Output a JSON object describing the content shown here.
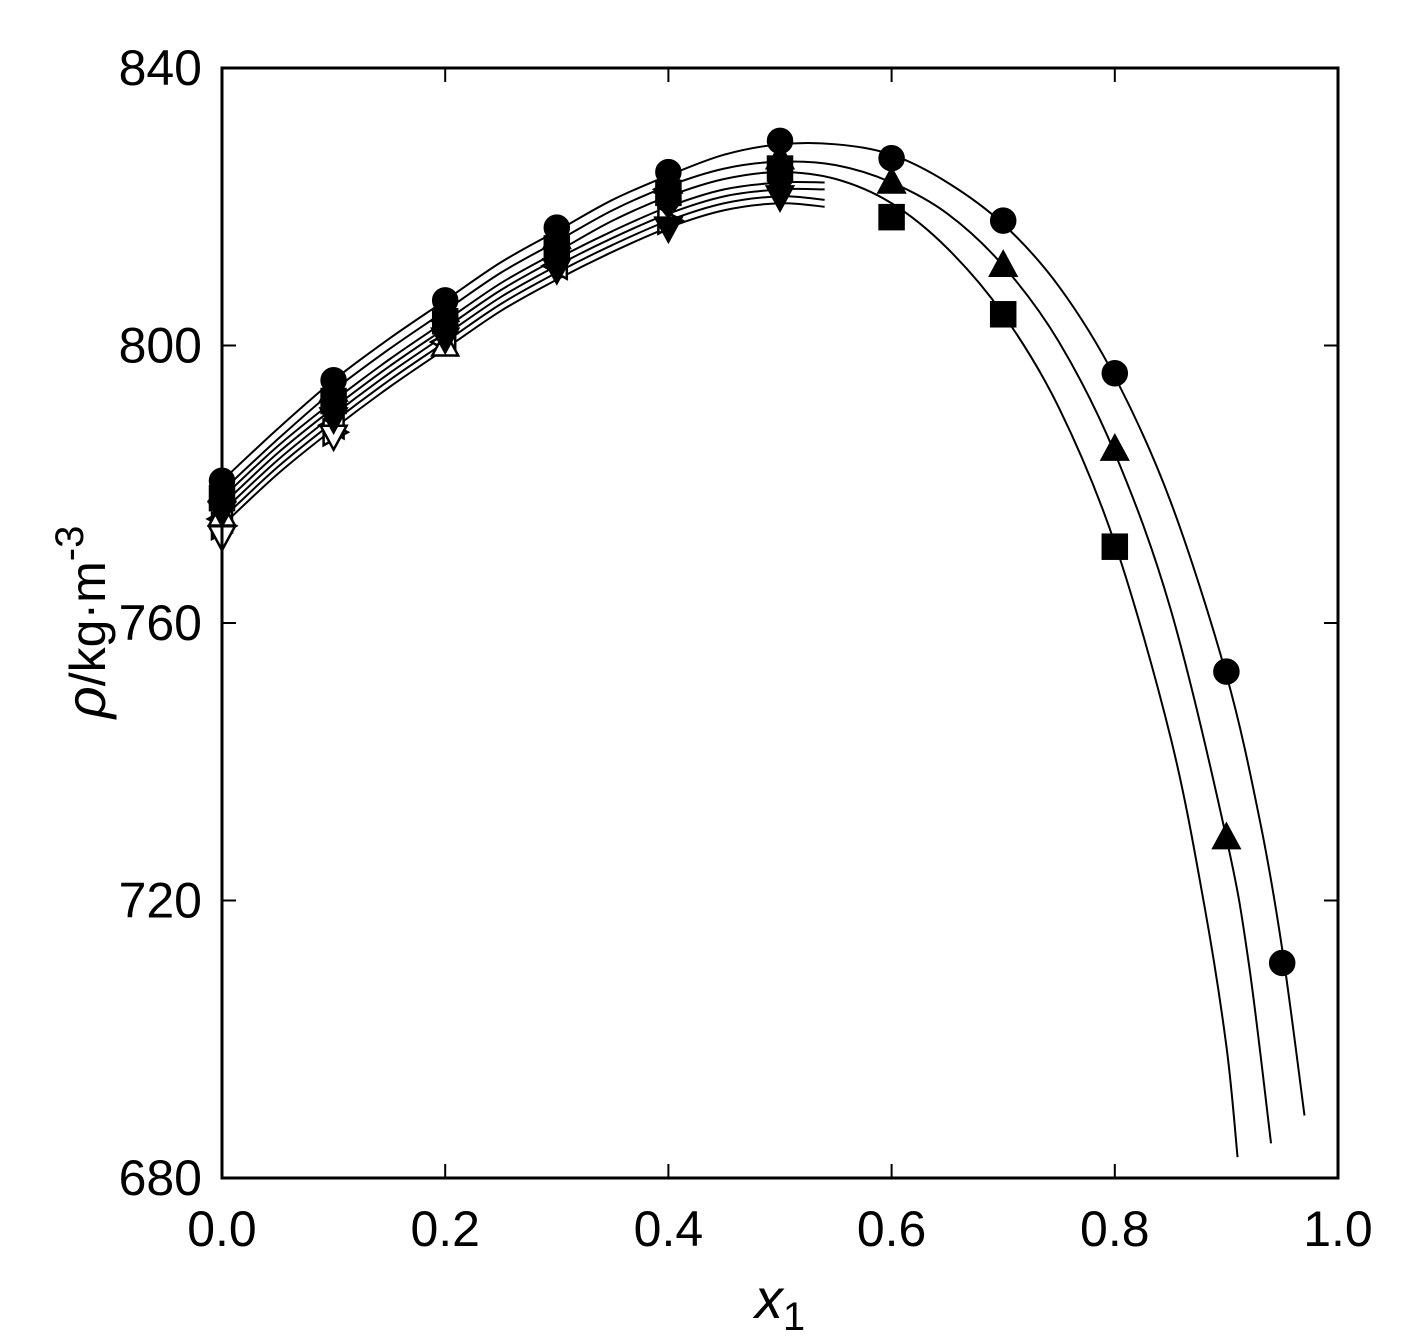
{
  "chart_data": {
    "type": "scatter",
    "xlabel": {
      "symbol": "x",
      "subscript": "1"
    },
    "ylabel": {
      "symbol": "ρ",
      "unit": "/kg·m",
      "superscript": "-3"
    },
    "xlim": [
      0.0,
      1.0
    ],
    "ylim": [
      680,
      840
    ],
    "xticks": [
      0.0,
      0.2,
      0.4,
      0.6,
      0.8,
      1.0
    ],
    "xtick_labels": [
      "0.0",
      "0.2",
      "0.4",
      "0.6",
      "0.8",
      "1.0"
    ],
    "yticks": [
      680,
      720,
      760,
      800,
      840
    ],
    "ytick_labels": [
      "680",
      "720",
      "760",
      "800",
      "840"
    ],
    "grid": false,
    "legend": "none",
    "series": [
      {
        "marker": "circle",
        "filled": true,
        "x": [
          0.0,
          0.1,
          0.2,
          0.3,
          0.4,
          0.5,
          0.6,
          0.7,
          0.8,
          0.9,
          0.95
        ],
        "y": [
          780.5,
          795.0,
          806.5,
          817.0,
          825.0,
          829.5,
          827.0,
          818.0,
          796.0,
          753.0,
          711.0
        ]
      },
      {
        "marker": "triangle-up",
        "filled": true,
        "x": [
          0.0,
          0.1,
          0.2,
          0.3,
          0.4,
          0.5,
          0.6,
          0.7,
          0.8,
          0.9
        ],
        "y": [
          779.0,
          793.5,
          805.0,
          815.5,
          823.5,
          827.0,
          823.5,
          811.5,
          785.0,
          729.0
        ]
      },
      {
        "marker": "square",
        "filled": true,
        "x": [
          0.0,
          0.1,
          0.2,
          0.3,
          0.4,
          0.5,
          0.6,
          0.7,
          0.8
        ],
        "y": [
          778.0,
          792.0,
          803.5,
          814.0,
          822.0,
          825.5,
          818.5,
          804.5,
          771.0
        ]
      },
      {
        "marker": "diamond",
        "filled": true,
        "x": [
          0.0,
          0.1,
          0.2,
          0.3,
          0.4,
          0.5
        ],
        "y": [
          777.0,
          791.0,
          802.5,
          813.0,
          820.5,
          823.5
        ]
      },
      {
        "marker": "triangle-down",
        "filled": true,
        "x": [
          0.0,
          0.1,
          0.2,
          0.3,
          0.4,
          0.5
        ],
        "y": [
          776.0,
          789.5,
          801.0,
          811.0,
          817.0,
          821.5
        ]
      },
      {
        "marker": "triangle-left",
        "filled": false,
        "x": [
          0.0,
          0.1,
          0.2,
          0.3,
          0.4
        ],
        "y": [
          775.0,
          788.5,
          800.5,
          811.5,
          822.5
        ]
      },
      {
        "marker": "triangle-right",
        "filled": false,
        "x": [
          0.0,
          0.1,
          0.4
        ],
        "y": [
          774.0,
          787.5,
          818.0
        ]
      },
      {
        "marker": "triangle-up",
        "filled": false,
        "x": [
          0.0,
          0.2
        ],
        "y": [
          775.5,
          800.0
        ]
      },
      {
        "marker": "triangle-down",
        "filled": false,
        "x": [
          0.0,
          0.1
        ],
        "y": [
          772.5,
          787.0
        ]
      }
    ],
    "fit_curves": [
      {
        "x": [
          0.0,
          0.05,
          0.1,
          0.15,
          0.2,
          0.25,
          0.3,
          0.35,
          0.4,
          0.45,
          0.5,
          0.55,
          0.6,
          0.65,
          0.7,
          0.75,
          0.8,
          0.85,
          0.9,
          0.93,
          0.95,
          0.97
        ],
        "y": [
          780.5,
          788.0,
          795.0,
          801.0,
          806.5,
          812.0,
          816.5,
          821.0,
          824.5,
          827.5,
          829.0,
          829.0,
          827.5,
          823.5,
          817.5,
          808.5,
          795.5,
          777.5,
          752.5,
          731.5,
          713.0,
          689.0
        ]
      },
      {
        "x": [
          0.0,
          0.05,
          0.1,
          0.15,
          0.2,
          0.25,
          0.3,
          0.35,
          0.4,
          0.45,
          0.5,
          0.55,
          0.6,
          0.65,
          0.7,
          0.75,
          0.8,
          0.85,
          0.9,
          0.92,
          0.94
        ],
        "y": [
          779.0,
          786.5,
          793.5,
          799.5,
          805.0,
          810.5,
          815.0,
          819.5,
          823.0,
          825.5,
          826.5,
          826.0,
          823.5,
          819.0,
          811.5,
          800.5,
          784.5,
          762.0,
          729.0,
          711.0,
          685.0
        ]
      },
      {
        "x": [
          0.0,
          0.05,
          0.1,
          0.15,
          0.2,
          0.25,
          0.3,
          0.35,
          0.4,
          0.45,
          0.5,
          0.55,
          0.6,
          0.65,
          0.7,
          0.75,
          0.8,
          0.85,
          0.88,
          0.9,
          0.91
        ],
        "y": [
          778.0,
          785.5,
          792.0,
          798.0,
          803.5,
          809.0,
          813.5,
          818.0,
          821.5,
          824.0,
          825.0,
          824.0,
          820.5,
          814.0,
          804.5,
          791.0,
          771.5,
          743.5,
          719.5,
          699.0,
          683.0
        ]
      },
      {
        "x": [
          0.0,
          0.05,
          0.1,
          0.15,
          0.2,
          0.25,
          0.3,
          0.35,
          0.4,
          0.45,
          0.5,
          0.54
        ],
        "y": [
          777.0,
          784.5,
          791.0,
          797.0,
          802.5,
          808.0,
          812.5,
          816.5,
          820.0,
          822.5,
          823.5,
          823.5
        ]
      },
      {
        "x": [
          0.0,
          0.05,
          0.1,
          0.15,
          0.2,
          0.25,
          0.3,
          0.35,
          0.4,
          0.45,
          0.5,
          0.54
        ],
        "y": [
          776.0,
          783.5,
          790.0,
          796.0,
          801.5,
          807.0,
          811.5,
          815.5,
          819.0,
          821.5,
          822.5,
          822.5
        ]
      },
      {
        "x": [
          0.0,
          0.05,
          0.1,
          0.15,
          0.2,
          0.25,
          0.3,
          0.35,
          0.4,
          0.45,
          0.5,
          0.54
        ],
        "y": [
          775.0,
          782.5,
          789.0,
          795.0,
          800.5,
          806.0,
          810.5,
          814.5,
          818.0,
          820.5,
          821.5,
          821.0
        ]
      },
      {
        "x": [
          0.0,
          0.05,
          0.1,
          0.15,
          0.2,
          0.25,
          0.3,
          0.35,
          0.4,
          0.45,
          0.5,
          0.54
        ],
        "y": [
          774.0,
          781.5,
          788.0,
          794.0,
          799.5,
          805.0,
          809.5,
          813.5,
          817.0,
          819.5,
          820.5,
          820.0
        ]
      }
    ]
  }
}
